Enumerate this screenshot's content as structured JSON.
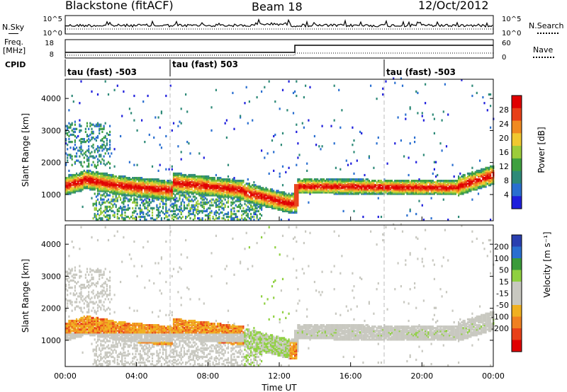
{
  "header": {
    "title": "Blackstone (fitACF)",
    "beam": "Beam 18",
    "date": "12/Oct/2012"
  },
  "left_labels": {
    "nsky": "N.Sky",
    "freq_line1": "Freq.",
    "freq_line2": "[MHz]",
    "cpid": "CPID"
  },
  "right_labels": {
    "nsearch": "N.Search",
    "nave": "Nave"
  },
  "panel_ticks": {
    "noise_left": [
      "10^5",
      "10^0"
    ],
    "noise_right": [
      "10^5",
      "10^0"
    ],
    "freq_left": [
      "18",
      "8"
    ],
    "freq_right": [
      "60",
      "0"
    ]
  },
  "cpid_segments": [
    {
      "label": "tau (fast) -503",
      "start_hour": 0
    },
    {
      "label": "tau (fast) 503",
      "start_hour": 6
    },
    {
      "label": "tau (fast) -503",
      "start_hour": 18
    }
  ],
  "chart_data": [
    {
      "type": "heatmap",
      "name": "power",
      "ylabel": "Slant Range [km]",
      "ylim": [
        180,
        4600
      ],
      "yticks": [
        1000,
        2000,
        3000,
        4000
      ],
      "xlim": [
        0,
        24
      ],
      "colorbar": {
        "label": "Power [dB]",
        "ticks": [
          4,
          8,
          12,
          16,
          20,
          24,
          28
        ],
        "range": [
          0,
          32
        ],
        "colors": [
          "#1f1fdc",
          "#2a6fd0",
          "#2e8a78",
          "#3fa03f",
          "#9ccc3a",
          "#f0c830",
          "#f08a20",
          "#e84018",
          "#e00000"
        ]
      }
    },
    {
      "type": "heatmap",
      "name": "velocity",
      "ylabel": "Slant Range [km]",
      "ylim": [
        180,
        4600
      ],
      "yticks": [
        1000,
        2000,
        3000,
        4000
      ],
      "xlim": [
        0,
        24
      ],
      "xlabel": "Time UT",
      "xticks": [
        "00:00",
        "04:00",
        "08:00",
        "12:00",
        "16:00",
        "20:00",
        "00:00"
      ],
      "colorbar": {
        "label": "Velocity [m s⁻¹]",
        "ticks": [
          "200",
          "100",
          "50",
          "15",
          "-15",
          "-50",
          "-100",
          "-200"
        ],
        "colors": [
          "#2a3fb0",
          "#2a6fd0",
          "#3a9a3a",
          "#8fd040",
          "#c8c8c0",
          "#c8c8c0",
          "#f0b020",
          "#f08020",
          "#e84018",
          "#e00000"
        ]
      }
    }
  ]
}
